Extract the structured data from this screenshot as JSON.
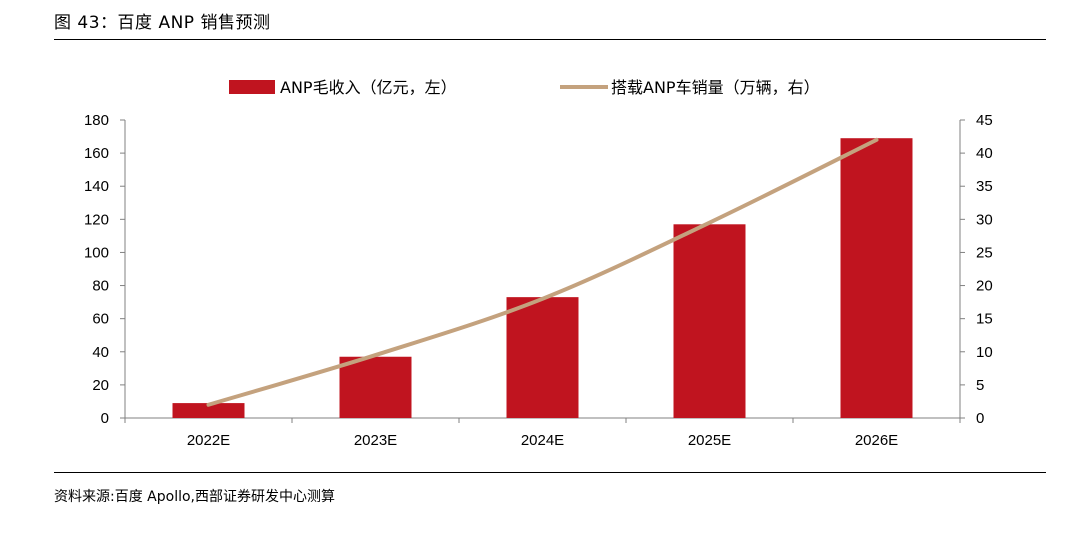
{
  "figure": {
    "title": "图 43：百度 ANP 销售预测",
    "source": "资料来源:百度 Apollo,西部证券研发中心测算"
  },
  "colors": {
    "bar": "#c0141f",
    "line": "#c4a27e",
    "axis": "#808080"
  },
  "chart_data": {
    "type": "bar",
    "categories": [
      "2022E",
      "2023E",
      "2024E",
      "2025E",
      "2026E"
    ],
    "series": [
      {
        "name": "ANP毛收入（亿元，左）",
        "type": "bar",
        "axis": "left",
        "values": [
          9,
          37,
          73,
          117,
          169
        ]
      },
      {
        "name": "搭载ANP车销量（万辆，右）",
        "type": "line",
        "axis": "right",
        "values": [
          2,
          9.5,
          18,
          29.5,
          42
        ]
      }
    ],
    "y_left": {
      "min": 0,
      "max": 180,
      "ticks": [
        0,
        20,
        40,
        60,
        80,
        100,
        120,
        140,
        160,
        180
      ]
    },
    "y_right": {
      "min": 0,
      "max": 45,
      "ticks": [
        0,
        5,
        10,
        15,
        20,
        25,
        30,
        35,
        40,
        45
      ]
    },
    "legend_position": "top-center",
    "grid": false
  }
}
